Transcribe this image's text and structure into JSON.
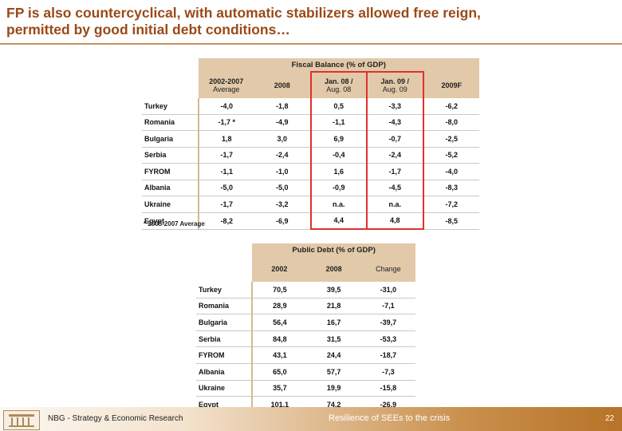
{
  "title": {
    "line1": "FP is also countercyclical, with automatic stabilizers allowed free reign,",
    "line2": "permitted by good initial debt conditions…"
  },
  "fiscal": {
    "heading": "Fiscal Balance (% of GDP)",
    "columns": [
      {
        "main": "2002-2007",
        "sub": "Average"
      },
      {
        "main": "2008",
        "sub": ""
      },
      {
        "main": "Jan. 08 /",
        "sub": "Aug. 08"
      },
      {
        "main": "Jan. 09 /",
        "sub": "Aug. 09"
      },
      {
        "main": "2009F",
        "sub": ""
      }
    ],
    "rows": [
      {
        "country": "Turkey",
        "values": [
          "-4,0",
          "-1,8",
          "0,5",
          "-3,3",
          "-6,2"
        ]
      },
      {
        "country": "Romania",
        "values": [
          "-1,7 *",
          "-4,9",
          "-1,1",
          "-4,3",
          "-8,0"
        ]
      },
      {
        "country": "Bulgaria",
        "values": [
          "1,8",
          "3,0",
          "6,9",
          "-0,7",
          "-2,5"
        ]
      },
      {
        "country": "Serbia",
        "values": [
          "-1,7",
          "-2,4",
          "-0,4",
          "-2,4",
          "-5,2"
        ]
      },
      {
        "country": "FYROM",
        "values": [
          "-1,1",
          "-1,0",
          "1,6",
          "-1,7",
          "-4,0"
        ]
      },
      {
        "country": "Albania",
        "values": [
          "-5,0",
          "-5,0",
          "-0,9",
          "-4,5",
          "-8,3"
        ]
      },
      {
        "country": "Ukraine",
        "values": [
          "-1,7",
          "-3,2",
          "n.a.",
          "n.a.",
          "-7,2"
        ]
      },
      {
        "country": "Egypt",
        "values": [
          "-8,2",
          "-6,9",
          "4,4",
          "4,8",
          "-8,5"
        ]
      }
    ],
    "footnote": "* 2005-2007 Average"
  },
  "debt": {
    "heading": "Public Debt (% of GDP)",
    "columns": [
      "2002",
      "2008",
      "Change"
    ],
    "rows": [
      {
        "country": "Turkey",
        "values": [
          "70,5",
          "39,5",
          "-31,0"
        ]
      },
      {
        "country": "Romania",
        "values": [
          "28,9",
          "21,8",
          "-7,1"
        ]
      },
      {
        "country": "Bulgaria",
        "values": [
          "56,4",
          "16,7",
          "-39,7"
        ]
      },
      {
        "country": "Serbia",
        "values": [
          "84,8",
          "31,5",
          "-53,3"
        ]
      },
      {
        "country": "FYROM",
        "values": [
          "43,1",
          "24,4",
          "-18,7"
        ]
      },
      {
        "country": "Albania",
        "values": [
          "65,0",
          "57,7",
          "-7,3"
        ]
      },
      {
        "country": "Ukraine",
        "values": [
          "35,7",
          "19,9",
          "-15,8"
        ]
      },
      {
        "country": "Egypt",
        "values": [
          "101,1",
          "74,2",
          "-26,9"
        ]
      }
    ]
  },
  "footer": {
    "left": "NBG - Strategy & Economic Research",
    "center": "Resilience of SEEs to the crisis",
    "page": "22"
  },
  "colors": {
    "title": "#9a4a17",
    "header_fill": "#e1c9a9",
    "highlight_box": "#e03030",
    "footer_dark": "#b77329"
  }
}
